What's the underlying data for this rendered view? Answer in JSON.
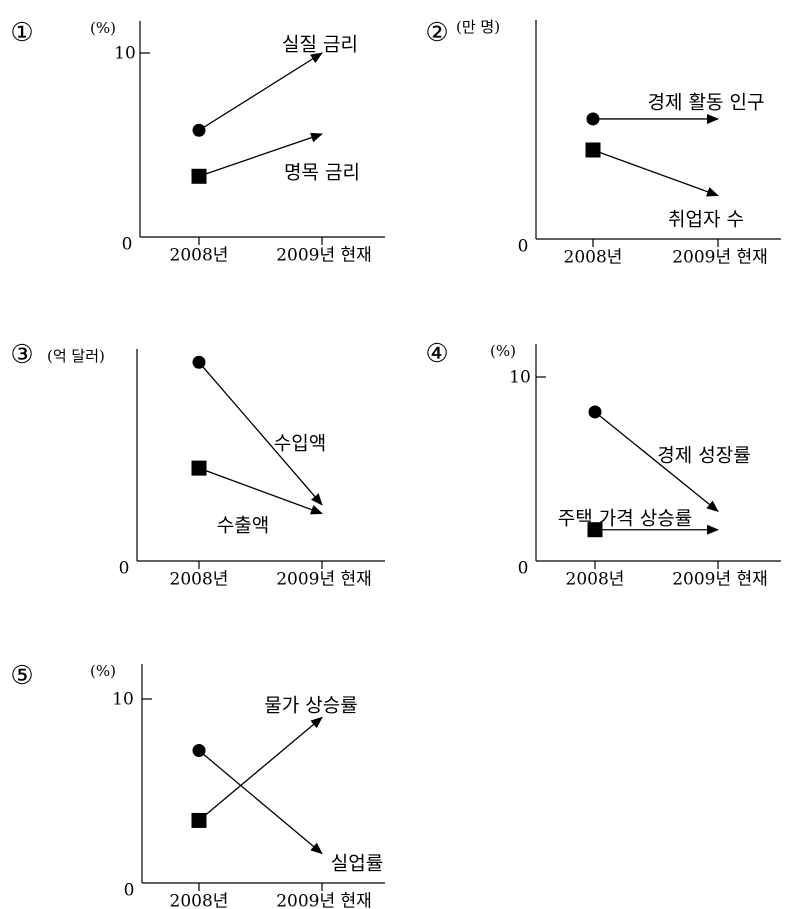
{
  "colors": {
    "ink": "#000000",
    "background": "#ffffff"
  },
  "chart_data": [
    {
      "type": "line",
      "panel_number": "①",
      "unit": "(%)",
      "origin_label": "0",
      "y_tick": {
        "value": 10,
        "label": "10"
      },
      "categories": [
        "2008년",
        "2009년 현재"
      ],
      "has_y_tick": true,
      "series": [
        {
          "name": "실질 금리",
          "marker": "circle",
          "values": [
            5.8,
            10.0
          ]
        },
        {
          "name": "명목 금리",
          "marker": "square",
          "values": [
            3.3,
            5.6
          ]
        }
      ]
    },
    {
      "type": "line",
      "panel_number": "②",
      "unit": "(만 명)",
      "origin_label": "0",
      "categories": [
        "2008년",
        "2009년 현재"
      ],
      "has_y_tick": false,
      "series": [
        {
          "name": "경제 활동 인구",
          "marker": "circle",
          "values": [
            5.8,
            5.8
          ]
        },
        {
          "name": "취업자 수",
          "marker": "square",
          "values": [
            4.3,
            2.1
          ]
        }
      ]
    },
    {
      "type": "line",
      "panel_number": "③",
      "unit": "(억 달러)",
      "origin_label": "0",
      "categories": [
        "2008년",
        "2009년 현재"
      ],
      "has_y_tick": false,
      "series": [
        {
          "name": "수입액",
          "marker": "circle",
          "values": [
            9.2,
            2.6
          ]
        },
        {
          "name": "수출액",
          "marker": "square",
          "values": [
            4.3,
            2.2
          ]
        }
      ]
    },
    {
      "type": "line",
      "panel_number": "④",
      "unit": "(%)",
      "origin_label": "0",
      "y_tick": {
        "value": 10,
        "label": "10"
      },
      "categories": [
        "2008년",
        "2009년 현재"
      ],
      "has_y_tick": true,
      "series": [
        {
          "name": "경제 성장률",
          "marker": "circle",
          "values": [
            8.1,
            2.7
          ]
        },
        {
          "name": "주택 가격 상승률",
          "marker": "square",
          "values": [
            1.7,
            1.7
          ]
        }
      ]
    },
    {
      "type": "line",
      "panel_number": "⑤",
      "unit": "(%)",
      "origin_label": "0",
      "y_tick": {
        "value": 10,
        "label": "10"
      },
      "categories": [
        "2008년",
        "2009년 현재"
      ],
      "has_y_tick": true,
      "series": [
        {
          "name": "물가 상승률",
          "marker": "square",
          "values": [
            3.4,
            9.0
          ]
        },
        {
          "name": "실업률",
          "marker": "circle",
          "values": [
            7.2,
            1.6
          ]
        }
      ]
    }
  ]
}
